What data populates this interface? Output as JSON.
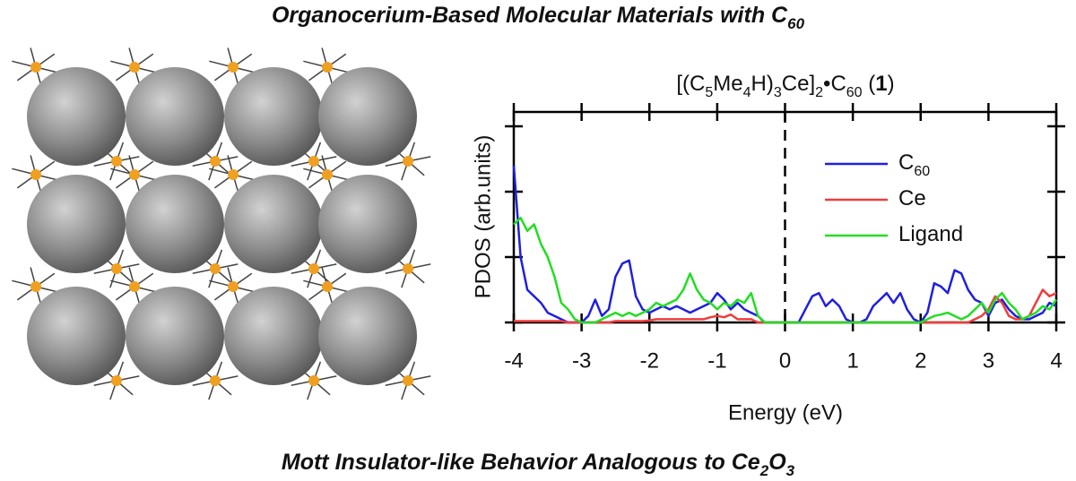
{
  "title": [
    {
      "text": "Organocerium-Based Molecular Materials with C"
    },
    {
      "text": "60",
      "sub": true
    }
  ],
  "caption": [
    {
      "text": "Mott Insulator-like Behavior Analogous to Ce"
    },
    {
      "text": "2",
      "sub": true
    },
    {
      "text": "O"
    },
    {
      "text": "3",
      "sub": true
    }
  ],
  "chart_data": {
    "type": "line",
    "title": [
      {
        "text": "[(C"
      },
      {
        "text": "5",
        "sub": true
      },
      {
        "text": "Me"
      },
      {
        "text": "4",
        "sub": true
      },
      {
        "text": "H)"
      },
      {
        "text": "3",
        "sub": true
      },
      {
        "text": "Ce]"
      },
      {
        "text": "2",
        "sub": true
      },
      {
        "text": "•C"
      },
      {
        "text": "60",
        "sub": true
      },
      {
        "text": " ("
      },
      {
        "text": "1",
        "bold": true
      },
      {
        "text": ")"
      }
    ],
    "x_label": "Energy (eV)",
    "y_label": "PDOS (arb.units)",
    "x": [
      -4,
      -3.9,
      -3.8,
      -3.7,
      -3.6,
      -3.5,
      -3.4,
      -3.3,
      -3.2,
      -3.1,
      -3,
      -2.9,
      -2.8,
      -2.7,
      -2.6,
      -2.5,
      -2.4,
      -2.3,
      -2.2,
      -2.1,
      -2,
      -1.9,
      -1.8,
      -1.7,
      -1.6,
      -1.5,
      -1.4,
      -1.3,
      -1.2,
      -1.1,
      -1,
      -0.9,
      -0.8,
      -0.7,
      -0.6,
      -0.5,
      -0.4,
      -0.3,
      -0.2,
      -0.1,
      0,
      0.1,
      0.2,
      0.3,
      0.4,
      0.5,
      0.6,
      0.7,
      0.8,
      0.9,
      1,
      1.1,
      1.2,
      1.3,
      1.4,
      1.5,
      1.6,
      1.7,
      1.8,
      1.9,
      2,
      2.1,
      2.2,
      2.3,
      2.4,
      2.5,
      2.6,
      2.7,
      2.8,
      2.9,
      3,
      3.1,
      3.2,
      3.3,
      3.4,
      3.5,
      3.6,
      3.7,
      3.8,
      3.9,
      4
    ],
    "series": [
      {
        "name": "C",
        "name_sub": "60",
        "color": "#1f1fe0",
        "values": [
          2.4,
          1.0,
          0.5,
          0.4,
          0.3,
          0.15,
          0.1,
          0.05,
          0,
          0,
          0,
          0.1,
          0.35,
          0.1,
          0.2,
          0.7,
          0.9,
          0.95,
          0.4,
          0.2,
          0.15,
          0.2,
          0.25,
          0.2,
          0.25,
          0.2,
          0.15,
          0.2,
          0.25,
          0.3,
          0.45,
          0.35,
          0.2,
          0.3,
          0.2,
          0.15,
          0.1,
          0,
          0,
          0,
          0,
          0,
          0,
          0.2,
          0.4,
          0.45,
          0.25,
          0.35,
          0.25,
          0.05,
          0,
          0,
          0.05,
          0.25,
          0.35,
          0.45,
          0.3,
          0.45,
          0.2,
          0.05,
          0,
          0.15,
          0.6,
          0.55,
          0.45,
          0.8,
          0.75,
          0.5,
          0.35,
          0.3,
          0.1,
          0.3,
          0.35,
          0.2,
          0.1,
          0.05,
          0.05,
          0.1,
          0.15,
          0.3,
          0.25
        ]
      },
      {
        "name": "Ce",
        "color": "#f03c3c",
        "values": [
          0.02,
          0.02,
          0.02,
          0.02,
          0.02,
          0.02,
          0.02,
          0.02,
          0,
          0,
          0,
          0,
          0,
          0,
          0,
          0.02,
          0.02,
          0.02,
          0.02,
          0.02,
          0.03,
          0.05,
          0.05,
          0.05,
          0.05,
          0.05,
          0.05,
          0.05,
          0.05,
          0.08,
          0.1,
          0.08,
          0.12,
          0.05,
          0.05,
          0.05,
          0,
          0,
          0,
          0,
          0,
          0,
          0,
          0,
          0,
          0,
          0,
          0,
          0,
          0,
          0,
          0,
          0,
          0,
          0,
          0,
          0,
          0,
          0,
          0,
          0,
          0,
          0,
          0,
          0,
          0,
          0,
          0,
          0.05,
          0.1,
          0.2,
          0.4,
          0.3,
          0.1,
          0.05,
          0.05,
          0.1,
          0.3,
          0.5,
          0.4,
          0.45
        ]
      },
      {
        "name": "Ligand",
        "color": "#22dd22",
        "values": [
          1.5,
          1.6,
          1.4,
          1.5,
          1.2,
          1.0,
          0.7,
          0.3,
          0.2,
          0.05,
          0,
          0,
          0,
          0.05,
          0.1,
          0.15,
          0.1,
          0.15,
          0.1,
          0.15,
          0.2,
          0.3,
          0.25,
          0.3,
          0.35,
          0.5,
          0.75,
          0.5,
          0.35,
          0.3,
          0.2,
          0.3,
          0.25,
          0.35,
          0.3,
          0.45,
          0.1,
          0,
          0,
          0,
          0,
          0,
          0,
          0,
          0,
          0,
          0,
          0,
          0,
          0,
          0,
          0,
          0,
          0,
          0,
          0,
          0,
          0,
          0,
          0,
          0,
          0.05,
          0.1,
          0.12,
          0.15,
          0.1,
          0.05,
          0.1,
          0.2,
          0.3,
          0.15,
          0.35,
          0.45,
          0.3,
          0.2,
          0.05,
          0.1,
          0.15,
          0.25,
          0.2,
          0.35
        ]
      }
    ],
    "xlim": [
      -4,
      4
    ],
    "xticks": [
      -4,
      -3,
      -2,
      -1,
      0,
      1,
      2,
      3,
      4
    ],
    "ylim": [
      0,
      3.22
    ],
    "yticks": [
      0,
      1,
      2,
      3
    ],
    "ytick_labels": false,
    "zero_line": true,
    "legend": "upper right"
  }
}
